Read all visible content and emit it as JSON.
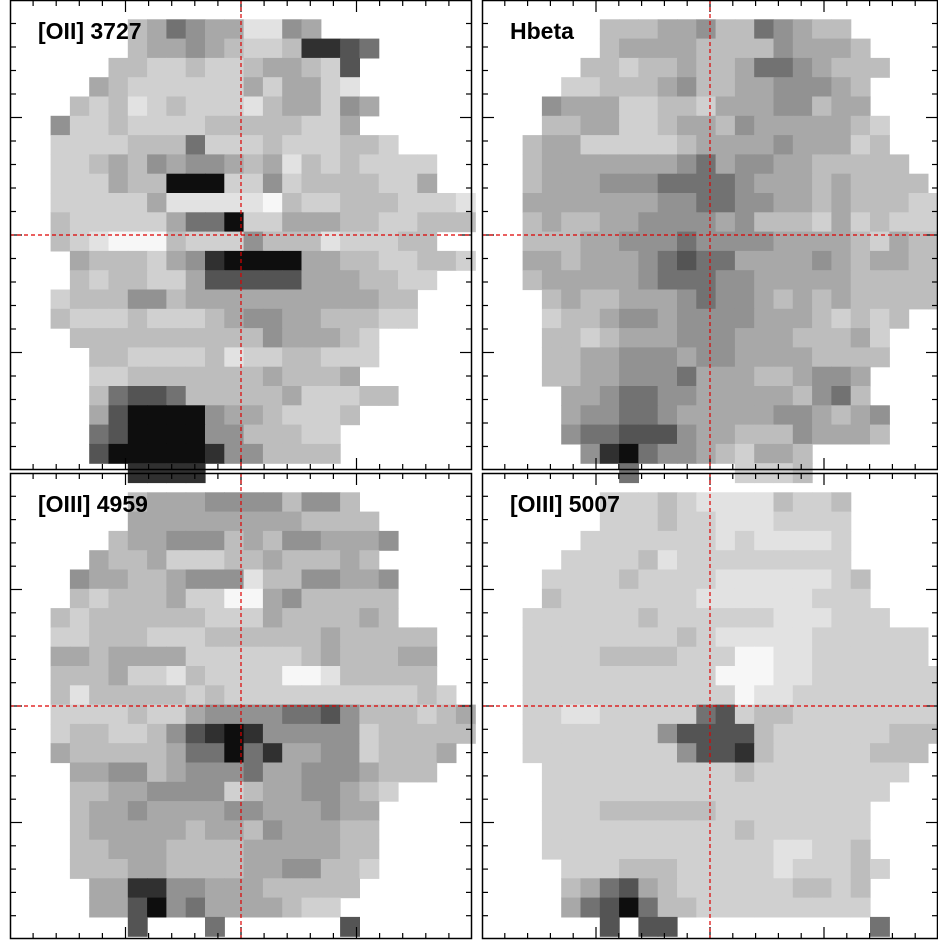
{
  "figure": {
    "panels": [
      {
        "label": "[OII] 3727",
        "map": [
          "...........................",
          "......3465441154...........",
          "......3445432238876........",
          ".....3322322344327.........",
          "....43222222424421.........",
          "...3231232221344254........",
          "..5223222233333224.........",
          "..222233362223222332.......",
          "..22343545543413232222.....",
          "..22243399922523333224.....",
          "..2222241111103223332221...",
          "..3222224669224443322333...",
          "..32100032225333122233.....",
          "...433324589999443322332...",
          "...3233224777774443322.....",
          "..2333553444444444433......",
          "..3222322234554433322......",
          "...3333333333544432........",
          "....332222312233222........",
          "....22333333343334.........",
          "....3677633333422233.......",
          "....47999954432223.........",
          "....6799995533322..........",
          "....7999998553333..........",
          "......8888............."
        ]
      },
      {
        "label": "Hbeta",
        "map": [
          "...........................",
          "......3334453365433........",
          "......34444333354443.......",
          ".....3323343346654333......",
          "....2233345334455543.......",
          "...54442233244455344.......",
          "...334422344354444432......",
          "..3442222234444544423......",
          "..34444444564554433333.....",
          "..344455566665444343333....",
          "..4444444556655443433322...",
          "..3433445555453332423222...",
          "..33344555655554444324334..",
          "..44344456766444454344334..",
          "..3444445666554444433333...",
          "...343344456554343433333...",
          "...2334554555544432323.....",
          "...332344455544433342......",
          "...334455545544443333......",
          "...33445556444334554.......",
          "....4456655444443563.......",
          "....45566544444554345......",
          "....56677754433354443......",
          ".....589655432443...........",
          ".......6.....2223.........."
        ]
      },
      {
        "label": "[OIII] 4959",
        "map": [
          "...........................",
          "......344455553553..........",
          "......4444444443333........",
          ".....344555343554445.......",
          "....433422233433343........",
          "...54433455513355445.......",
          "...32333422004533333.......",
          "..323333332224333343.......",
          "..22333222333333433333.....",
          "..44344442222223433344.....",
          "..33342213222200133333.....",
          "..313333323222222222232....",
          "..2222322455556675333234...",
          "..2332235789855555233333...",
          "..433333466968445523334....",
          "...4455345556445554333.....",
          "...33445555234455432.......",
          "...3445444455444544........",
          "...3444443443544433........",
          "...3344433334444433........",
          "...3334433334455332........",
          "....44885544433333.........",
          "....4479564444322..........",
          "......7...6......7........."
        ]
      },
      {
        "label": "[OIII] 5007",
        "map": [
          "...........................",
          "......2223211113223........",
          "......2223221112222........",
          ".....22222221211112........",
          "....222231222222222........",
          "...22223222211111123.......",
          "...32222222111111222.......",
          "..2222223222222111222......",
          "..222222223211111222222....",
          "..222233332220011222222....",
          "..2222222222000112222222...",
          "..2222222222201122222222...",
          "..22112222267233222222222..",
          "..22222225777732222223333..",
          "..222222225778322222333....",
          "...2222222222322222222.....",
          "...222222222222222222......",
          "...22233333322222222.......",
          "...22222222223222222.......",
          "...22222222222211223.......",
          "....22233322222122232......",
          "....3467432222223323.......",
          "....4679633222222222.......",
          "......7.77..........6......"
        ]
      }
    ],
    "colors": {
      "background": "#ffffff",
      "frame": "#000000",
      "crosshair": "#dd0000"
    }
  }
}
